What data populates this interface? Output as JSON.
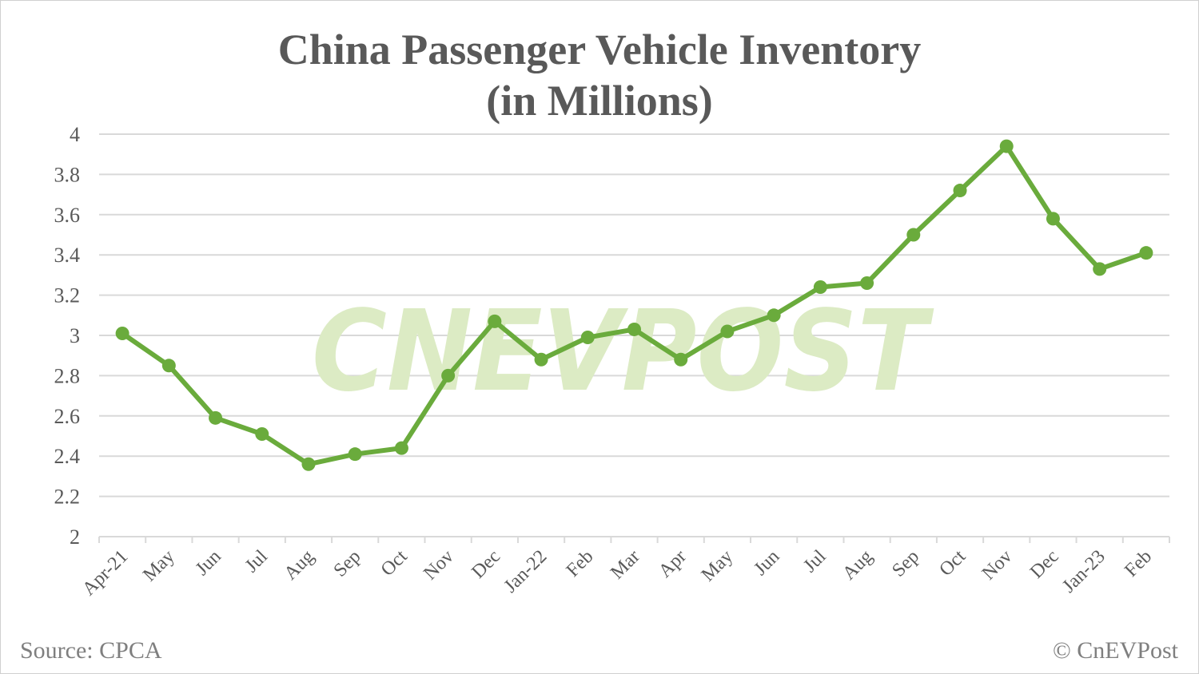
{
  "header": {
    "title_line1": "China Passenger Vehicle Inventory",
    "title_line2": "(in Millions)"
  },
  "footer": {
    "source": "Source: CPCA",
    "credit": "© CnEVPost"
  },
  "watermark": "CNEVPOST",
  "colors": {
    "line": "#6aab3c",
    "watermark": "#dcebc4",
    "grid": "#d9d9d9",
    "text": "#595959"
  },
  "chart_data": {
    "type": "line",
    "title": "China Passenger Vehicle Inventory (in Millions)",
    "xlabel": "",
    "ylabel": "",
    "ylim": [
      2,
      4
    ],
    "yticks": [
      2,
      2.2,
      2.4,
      2.6,
      2.8,
      3,
      3.2,
      3.4,
      3.6,
      3.8,
      4
    ],
    "ytick_labels": [
      "2",
      "2.2",
      "2.4",
      "2.6",
      "2.8",
      "3",
      "3.2",
      "3.4",
      "3.6",
      "3.8",
      "4"
    ],
    "grid": true,
    "legend": null,
    "categories": [
      "Apr-21",
      "May",
      "Jun",
      "Jul",
      "Aug",
      "Sep",
      "Oct",
      "Nov",
      "Dec",
      "Jan-22",
      "Feb",
      "Mar",
      "Apr",
      "May",
      "Jun",
      "Jul",
      "Aug",
      "Sep",
      "Oct",
      "Nov",
      "Dec",
      "Jan-23",
      "Feb"
    ],
    "series": [
      {
        "name": "Inventory (millions)",
        "values": [
          3.01,
          2.85,
          2.59,
          2.51,
          2.36,
          2.41,
          2.44,
          2.8,
          3.07,
          2.88,
          2.99,
          3.03,
          2.88,
          3.02,
          3.1,
          3.24,
          3.26,
          3.5,
          3.72,
          3.94,
          3.58,
          3.33,
          3.41
        ]
      }
    ],
    "source": "CPCA"
  }
}
